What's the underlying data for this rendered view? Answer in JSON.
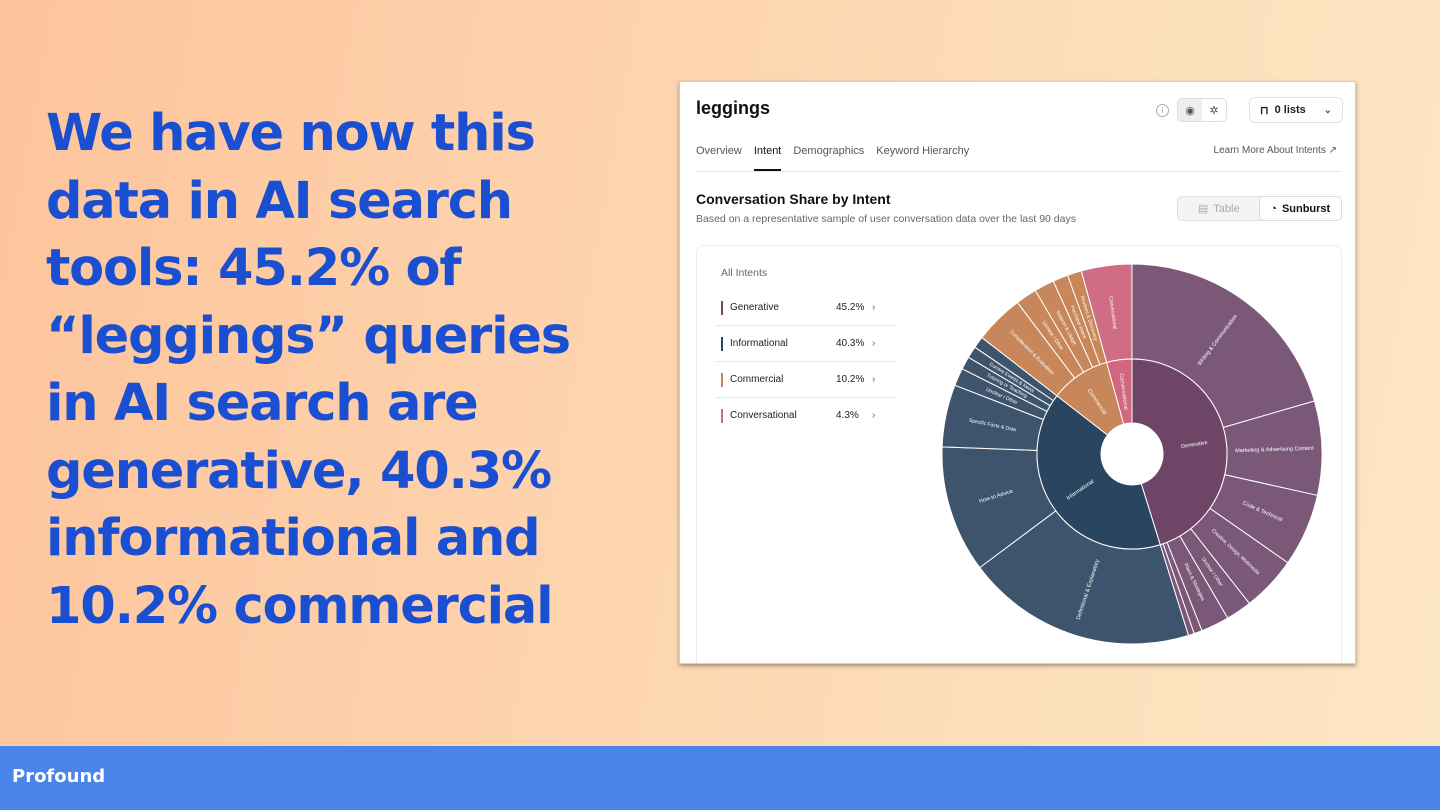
{
  "headline": "We have now this data in AI search tools: 45.2% of “leggings” queries in AI search are generative, 40.3% informational and 10.2% commercial",
  "footer": {
    "brand": "Profound"
  },
  "app": {
    "title": "leggings",
    "tools": {
      "info_icon": "info-icon",
      "view_icons": [
        "focus-icon",
        "settings-icon"
      ],
      "lists_label": "0 lists"
    },
    "tabs": [
      {
        "label": "Overview",
        "active": false
      },
      {
        "label": "Intent",
        "active": true
      },
      {
        "label": "Demographics",
        "active": false
      },
      {
        "label": "Keyword Hierarchy",
        "active": false
      }
    ],
    "learn_more": "Learn More About Intents",
    "section": {
      "title": "Conversation Share by Intent",
      "subtitle": "Based on a representative sample of user conversation data over the last 90 days"
    },
    "view_toggle": {
      "table": "Table",
      "sunburst": "Sunburst",
      "selected": "Sunburst"
    },
    "legend": {
      "header": "All Intents",
      "items": [
        {
          "name": "Generative",
          "pct": "45.2%",
          "color": "#6e4566"
        },
        {
          "name": "Informational",
          "pct": "40.3%",
          "color": "#2a4560"
        },
        {
          "name": "Commercial",
          "pct": "10.2%",
          "color": "#c8875a"
        },
        {
          "name": "Conversational",
          "pct": "4.3%",
          "color": "#d0667f"
        }
      ]
    }
  },
  "chart_data": {
    "type": "sunburst",
    "title": "Conversation Share by Intent",
    "inner": [
      {
        "label": "Generative",
        "value": 45.2,
        "color": "#6e4566"
      },
      {
        "label": "Informational",
        "value": 40.3,
        "color": "#2a4560"
      },
      {
        "label": "Commercial",
        "value": 10.2,
        "color": "#c8875a"
      },
      {
        "label": "Conversational",
        "value": 4.3,
        "color": "#d0667f"
      }
    ],
    "outer": [
      {
        "parent": "Generative",
        "label": "Writing & Communication",
        "value": 20.5
      },
      {
        "parent": "Generative",
        "label": "Marketing & Advertising Content",
        "value": 8.0
      },
      {
        "parent": "Generative",
        "label": "Code & Technical",
        "value": 6.2
      },
      {
        "parent": "Generative",
        "label": "Creative, Design, Multimedia",
        "value": 4.7
      },
      {
        "parent": "Generative",
        "label": "Unclear / Other",
        "value": 2.2
      },
      {
        "parent": "Generative",
        "label": "Plans & Strategies",
        "value": 2.4
      },
      {
        "parent": "Generative",
        "label": "",
        "value": 0.7
      },
      {
        "parent": "Generative",
        "label": "",
        "value": 0.5
      },
      {
        "parent": "Informational",
        "label": "Definitional & Explanatory",
        "value": 19.6
      },
      {
        "parent": "Informational",
        "label": "How-to Advice",
        "value": 10.8
      },
      {
        "parent": "Informational",
        "label": "Specific Facts & Data",
        "value": 5.3
      },
      {
        "parent": "Informational",
        "label": "Unclear / Other",
        "value": 1.5
      },
      {
        "parent": "Informational",
        "label": "Tutoring or Teaching",
        "value": 1.1
      },
      {
        "parent": "Informational",
        "label": "Current Events & News",
        "value": 1.0
      },
      {
        "parent": "Informational",
        "label": "",
        "value": 1.0
      },
      {
        "parent": "Commercial",
        "label": "Consideration & Evaluation",
        "value": 4.2
      },
      {
        "parent": "Commercial",
        "label": "Unclear / Other",
        "value": 1.8
      },
      {
        "parent": "Commercial",
        "label": "Support & Usage",
        "value": 1.7
      },
      {
        "parent": "Commercial",
        "label": "Purchase Intent",
        "value": 1.3
      },
      {
        "parent": "Commercial",
        "label": "Reviews & Discovery",
        "value": 1.2
      },
      {
        "parent": "Conversational",
        "label": "Conversational",
        "value": 4.3
      }
    ],
    "outer_colors": {
      "Generative": "#7b5878",
      "Informational": "#3e546c",
      "Commercial": "#c8875a",
      "Conversational": "#d06d85"
    }
  }
}
